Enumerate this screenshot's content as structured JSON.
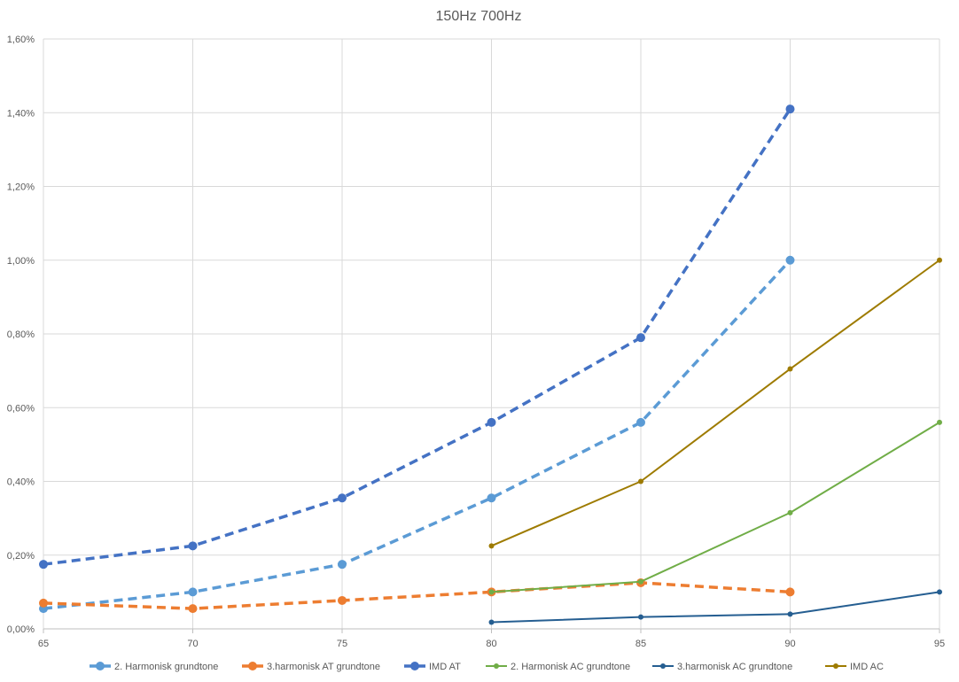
{
  "chart_data": {
    "type": "line",
    "title": "150Hz 700Hz",
    "xlabel": "",
    "ylabel": "",
    "x": [
      65,
      70,
      75,
      80,
      85,
      90,
      95
    ],
    "x_ticks": [
      "65",
      "70",
      "75",
      "80",
      "85",
      "90",
      "95"
    ],
    "xlim": [
      65,
      95
    ],
    "ylim": [
      0,
      0.016
    ],
    "y_ticks": [
      "0,00%",
      "0,20%",
      "0,40%",
      "0,60%",
      "0,80%",
      "1,00%",
      "1,20%",
      "1,40%",
      "1,60%"
    ],
    "grid": true,
    "legend_position": "bottom",
    "series": [
      {
        "name": "2. Harmonisk grundtone",
        "color": "#5B9BD5",
        "style": "dashed",
        "marker": "large",
        "points": [
          [
            65,
            0.00055
          ],
          [
            70,
            0.001
          ],
          [
            75,
            0.00175
          ],
          [
            80,
            0.00355
          ],
          [
            85,
            0.0056
          ],
          [
            90,
            0.01
          ]
        ]
      },
      {
        "name": "3.harmonisk AT grundtone",
        "color": "#ED7D31",
        "style": "dashed",
        "marker": "large",
        "points": [
          [
            65,
            0.0007
          ],
          [
            70,
            0.00055
          ],
          [
            75,
            0.00077
          ],
          [
            80,
            0.001
          ],
          [
            85,
            0.00125
          ],
          [
            90,
            0.001
          ]
        ]
      },
      {
        "name": "IMD AT",
        "color": "#4472C4",
        "style": "dashed",
        "marker": "large",
        "points": [
          [
            65,
            0.00175
          ],
          [
            70,
            0.00225
          ],
          [
            75,
            0.00355
          ],
          [
            80,
            0.0056
          ],
          [
            85,
            0.0079
          ],
          [
            90,
            0.0141
          ]
        ]
      },
      {
        "name": "2. Harmonisk AC grundtone",
        "color": "#70AD47",
        "style": "solid",
        "marker": "small",
        "points": [
          [
            80,
            0.001
          ],
          [
            85,
            0.00128
          ],
          [
            90,
            0.00315
          ],
          [
            95,
            0.0056
          ]
        ]
      },
      {
        "name": "3.harmonisk AC grundtone",
        "color": "#255E91",
        "style": "solid",
        "marker": "small",
        "points": [
          [
            80,
            0.00018
          ],
          [
            85,
            0.00032
          ],
          [
            90,
            0.0004
          ],
          [
            95,
            0.001
          ]
        ]
      },
      {
        "name": "IMD AC",
        "color": "#9E7B00",
        "style": "solid",
        "marker": "small",
        "points": [
          [
            80,
            0.00225
          ],
          [
            85,
            0.004
          ],
          [
            90,
            0.00705
          ],
          [
            95,
            0.01
          ]
        ]
      }
    ]
  }
}
